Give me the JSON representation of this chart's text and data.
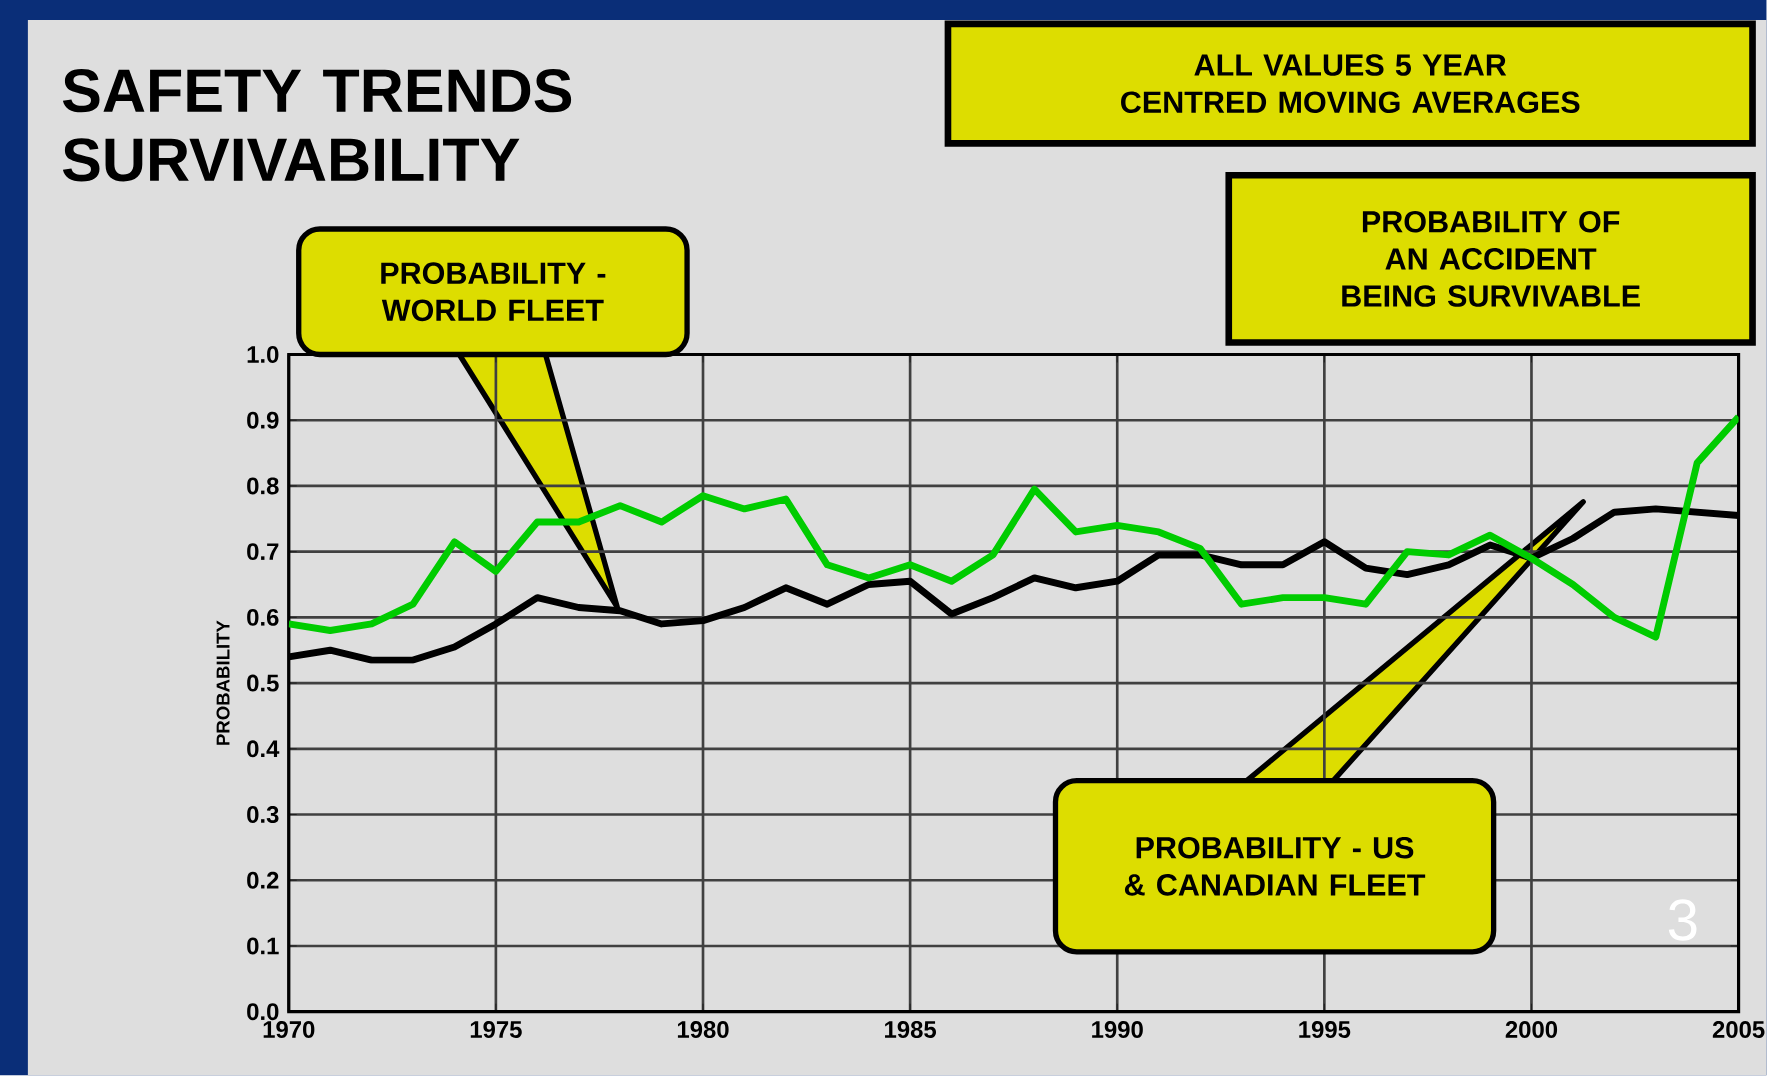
{
  "chart_data": {
    "type": "line",
    "title": "SAFETY TRENDS SURVIVABILITY",
    "ylabel": "PROBABILITY",
    "annotations": [
      "ALL VALUES 5 YEAR CENTRED MOVING AVERAGES",
      "PROBABILITY OF AN ACCIDENT BEING SURVIVABLE",
      "PROBABILITY - WORLD FLEET",
      "PROBABILITY - US & CANADIAN FLEET",
      "3"
    ],
    "x": [
      1970,
      1971,
      1972,
      1973,
      1974,
      1975,
      1976,
      1977,
      1978,
      1979,
      1980,
      1981,
      1982,
      1983,
      1984,
      1985,
      1986,
      1987,
      1988,
      1989,
      1990,
      1991,
      1992,
      1993,
      1994,
      1995,
      1996,
      1997,
      1998,
      1999,
      2000,
      2001,
      2002,
      2003,
      2004,
      2005
    ],
    "series": [
      {
        "color": "#000000",
        "values": [
          0.54,
          0.55,
          0.535,
          0.535,
          0.555,
          0.59,
          0.63,
          0.615,
          0.61,
          0.59,
          0.595,
          0.615,
          0.645,
          0.62,
          0.65,
          0.655,
          0.605,
          0.63,
          0.66,
          0.645,
          0.655,
          0.695,
          0.695,
          0.68,
          0.68,
          0.715,
          0.675,
          0.665,
          0.68,
          0.71,
          0.69,
          0.72,
          0.76,
          0.765,
          0.76,
          0.755
        ]
      },
      {
        "color": "#00cc00",
        "values": [
          0.59,
          0.58,
          0.59,
          0.62,
          0.715,
          0.67,
          0.745,
          0.745,
          0.77,
          0.745,
          0.785,
          0.765,
          0.78,
          0.68,
          0.66,
          0.68,
          0.655,
          0.695,
          0.795,
          0.73,
          0.74,
          0.73,
          0.705,
          0.62,
          0.63,
          0.63,
          0.62,
          0.7,
          0.695,
          0.725,
          0.69,
          0.65,
          0.6,
          0.57,
          0.835,
          0.905
        ]
      }
    ],
    "xlim": [
      1970,
      2005
    ],
    "ylim": [
      0,
      1
    ],
    "xticks": [
      1970,
      1975,
      1980,
      1985,
      1990,
      1995,
      2000,
      2005
    ],
    "yticks": [
      {
        "value": 0,
        "label": "0.0"
      },
      {
        "value": 0.1,
        "label": "0.1"
      },
      {
        "value": 0.2,
        "label": "0.2"
      },
      {
        "value": 0.3,
        "label": "0.3"
      },
      {
        "value": 0.4,
        "label": "0.4"
      },
      {
        "value": 0.5,
        "label": "0.5"
      },
      {
        "value": 0.6,
        "label": "0.6"
      },
      {
        "value": 0.7,
        "label": "0.7"
      },
      {
        "value": 0.8,
        "label": "0.8"
      },
      {
        "value": 0.9,
        "label": "0.9"
      },
      {
        "value": 1,
        "label": "1.0"
      }
    ],
    "grid": true,
    "marker": "none",
    "line_style": "solid"
  }
}
